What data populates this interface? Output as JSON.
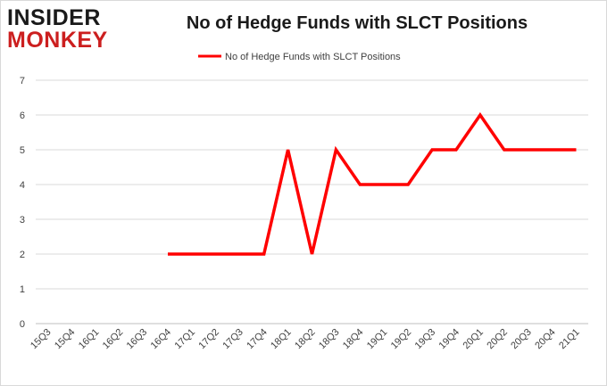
{
  "logo": {
    "line1": "INSIDER",
    "line2": "MONKEY"
  },
  "colors": {
    "series": "#ff0000",
    "grid": "#d9d9d9",
    "axis": "#bfbfbf",
    "logo_red": "#cc1f1f"
  },
  "chart_data": {
    "type": "line",
    "title": "No of Hedge Funds with SLCT Positions",
    "xlabel": "",
    "ylabel": "",
    "ylim": [
      0,
      7
    ],
    "yticks": [
      0,
      1,
      2,
      3,
      4,
      5,
      6,
      7
    ],
    "grid": true,
    "legend": "top-center",
    "categories": [
      "15Q3",
      "15Q4",
      "16Q1",
      "16Q2",
      "16Q3",
      "16Q4",
      "17Q1",
      "17Q2",
      "17Q3",
      "17Q4",
      "18Q1",
      "18Q2",
      "18Q3",
      "18Q4",
      "19Q1",
      "19Q2",
      "19Q3",
      "19Q4",
      "20Q1",
      "20Q2",
      "20Q3",
      "20Q4",
      "21Q1"
    ],
    "series": [
      {
        "name": "No of Hedge Funds with SLCT Positions",
        "values": [
          null,
          null,
          null,
          null,
          null,
          2,
          2,
          2,
          2,
          2,
          5,
          2,
          5,
          4,
          4,
          4,
          5,
          5,
          6,
          5,
          5,
          5,
          5
        ]
      }
    ]
  }
}
